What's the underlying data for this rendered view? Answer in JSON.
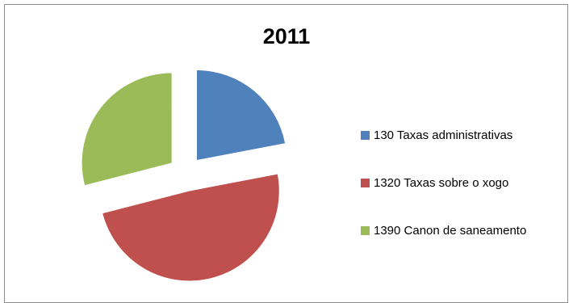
{
  "chart_data": {
    "type": "pie",
    "title": "2011",
    "categories": [
      "130 Taxas administrativas",
      "1320 Taxas sobre o xogo",
      "1390 Canon de saneamento"
    ],
    "values": [
      22,
      49,
      29
    ],
    "colors": [
      "#4f81bd",
      "#c0504d",
      "#9bbb59"
    ],
    "exploded": true,
    "legend_position": "right"
  }
}
